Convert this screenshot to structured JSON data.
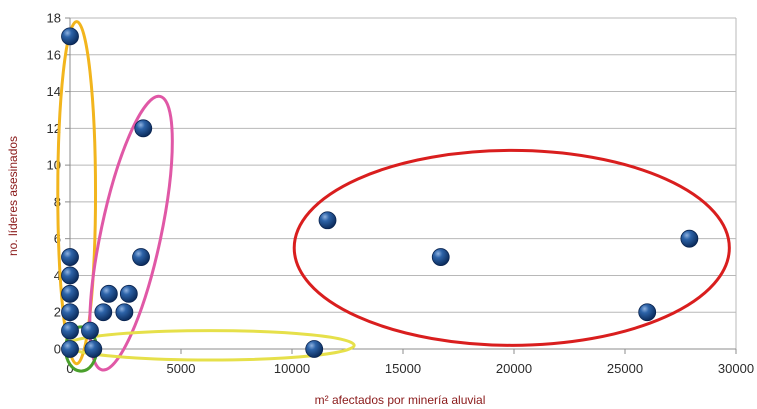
{
  "chart_data": {
    "type": "scatter",
    "title": "",
    "xlabel": "m² afectados por minería aluvial",
    "ylabel": "no. líderes asesinados",
    "xlim": [
      0,
      30000
    ],
    "ylim": [
      0,
      18
    ],
    "x_ticks": [
      0,
      5000,
      10000,
      15000,
      20000,
      25000,
      30000
    ],
    "y_ticks": [
      0,
      2,
      4,
      6,
      8,
      10,
      12,
      14,
      16,
      18
    ],
    "grid": "horizontal",
    "legend": "none",
    "marker_color": "#1f4e8c",
    "series": [
      {
        "points": [
          {
            "x": 0,
            "y": 17
          },
          {
            "x": 0,
            "y": 5
          },
          {
            "x": 0,
            "y": 4
          },
          {
            "x": 0,
            "y": 3
          },
          {
            "x": 0,
            "y": 2
          },
          {
            "x": 0,
            "y": 1
          },
          {
            "x": 0,
            "y": 0
          },
          {
            "x": 900,
            "y": 1
          },
          {
            "x": 1050,
            "y": 0
          },
          {
            "x": 1500,
            "y": 2
          },
          {
            "x": 1750,
            "y": 3
          },
          {
            "x": 2450,
            "y": 2
          },
          {
            "x": 2650,
            "y": 3
          },
          {
            "x": 3200,
            "y": 5
          },
          {
            "x": 3300,
            "y": 12
          },
          {
            "x": 11000,
            "y": 0
          },
          {
            "x": 11600,
            "y": 7
          },
          {
            "x": 16700,
            "y": 5
          },
          {
            "x": 26000,
            "y": 2
          },
          {
            "x": 27900,
            "y": 6
          }
        ]
      }
    ],
    "annotations": [
      {
        "shape": "ellipse",
        "color": "#f2b51d",
        "cx": 300,
        "cy": 8.5,
        "rx": 850,
        "ry": 9.3,
        "angle": 0
      },
      {
        "shape": "ellipse",
        "color": "#e058a6",
        "cx": 2750,
        "cy": 6.3,
        "rx": 1350,
        "ry": 7.6,
        "angle": 12
      },
      {
        "shape": "ellipse",
        "color": "#e6e04a",
        "cx": 6300,
        "cy": 0.2,
        "rx": 6500,
        "ry": 0.8,
        "angle": 0
      },
      {
        "shape": "ellipse",
        "color": "#4aa02c",
        "cx": 500,
        "cy": 0,
        "rx": 700,
        "ry": 1.2,
        "angle": 0
      },
      {
        "shape": "ellipse",
        "color": "#d91e1e",
        "cx": 19900,
        "cy": 5.5,
        "rx": 9800,
        "ry": 5.3,
        "angle": 0
      }
    ]
  }
}
